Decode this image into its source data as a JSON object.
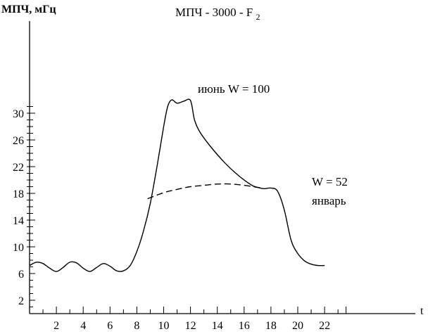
{
  "chart_data": {
    "type": "line",
    "title_main": "МПЧ - 3000 - F",
    "title_sub": "2",
    "ylabel": "МПЧ, мГц",
    "xlabel": "t",
    "xlim": [
      0,
      29
    ],
    "ylim": [
      0,
      33
    ],
    "x_ticks": [
      2,
      4,
      6,
      8,
      10,
      12,
      14,
      16,
      18,
      20,
      22
    ],
    "y_ticks": [
      2,
      6,
      10,
      14,
      18,
      22,
      26,
      30
    ],
    "series": [
      {
        "name": "июнь W = 100",
        "style": "solid",
        "points": [
          [
            0,
            7.2
          ],
          [
            0.5,
            7.7
          ],
          [
            1,
            7.5
          ],
          [
            1.5,
            6.8
          ],
          [
            2,
            6.3
          ],
          [
            2.5,
            6.9
          ],
          [
            3,
            7.7
          ],
          [
            3.5,
            7.6
          ],
          [
            4,
            6.8
          ],
          [
            4.5,
            6.3
          ],
          [
            5,
            6.9
          ],
          [
            5.5,
            7.5
          ],
          [
            6,
            7.1
          ],
          [
            6.5,
            6.4
          ],
          [
            7,
            6.4
          ],
          [
            7.5,
            7.2
          ],
          [
            8,
            9.3
          ],
          [
            8.5,
            12.4
          ],
          [
            9,
            16.5
          ],
          [
            9.5,
            22
          ],
          [
            10,
            28
          ],
          [
            10.3,
            31
          ],
          [
            10.6,
            32
          ],
          [
            11,
            31.5
          ],
          [
            11.5,
            31.8
          ],
          [
            12,
            31.9
          ],
          [
            12.3,
            29
          ],
          [
            12.7,
            27.2
          ],
          [
            13.5,
            25
          ],
          [
            14.5,
            22.7
          ],
          [
            15.5,
            20.8
          ],
          [
            16.5,
            19.3
          ],
          [
            17,
            18.9
          ],
          [
            17.5,
            18.7
          ],
          [
            18,
            18.8
          ],
          [
            18.5,
            18.3
          ],
          [
            19,
            15.5
          ],
          [
            19.5,
            11
          ],
          [
            20,
            9
          ],
          [
            20.5,
            7.9
          ],
          [
            21,
            7.4
          ],
          [
            21.5,
            7.2
          ],
          [
            22,
            7.2
          ]
        ]
      },
      {
        "name": "январь",
        "name_top": "W = 52",
        "style": "dashed",
        "points": [
          [
            8.8,
            17.2
          ],
          [
            10,
            18.1
          ],
          [
            11,
            18.6
          ],
          [
            12,
            19
          ],
          [
            13,
            19.2
          ],
          [
            14,
            19.4
          ],
          [
            15,
            19.4
          ],
          [
            16,
            19.2
          ],
          [
            17,
            18.9
          ],
          [
            17.5,
            18.7
          ]
        ]
      }
    ]
  }
}
